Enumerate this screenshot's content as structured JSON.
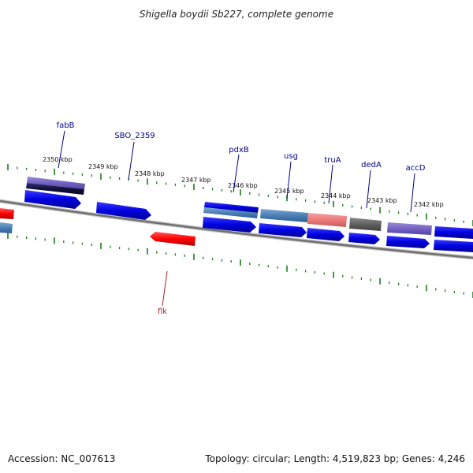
{
  "header": {
    "title": "Shigella boydii Sb227, complete genome"
  },
  "footer": {
    "accession": "Accession: NC_007613",
    "topology": "Topology: circular; Length: 4,519,823 bp; Genes: 4,246"
  },
  "ruler": {
    "labels": [
      "2350 kbp",
      "2349 kbp",
      "2348 kbp",
      "2347 kbp",
      "2346 kbp",
      "2345 kbp",
      "2344 kbp",
      "2343 kbp",
      "2342 kbp"
    ]
  },
  "genes": [
    {
      "name": "fabB"
    },
    {
      "name": "SBO_2359"
    },
    {
      "name": "pdxB"
    },
    {
      "name": "usg"
    },
    {
      "name": "truA"
    },
    {
      "name": "dedA"
    },
    {
      "name": "accD"
    },
    {
      "name": "flk"
    }
  ],
  "colors": {
    "forward_cds": "#0000ee",
    "reverse_cds": "#ff0000",
    "backbone": "#808080",
    "ruler_ticks": "#1a7f1a",
    "label_forward": "#00008b",
    "label_reverse": "#b22222"
  }
}
